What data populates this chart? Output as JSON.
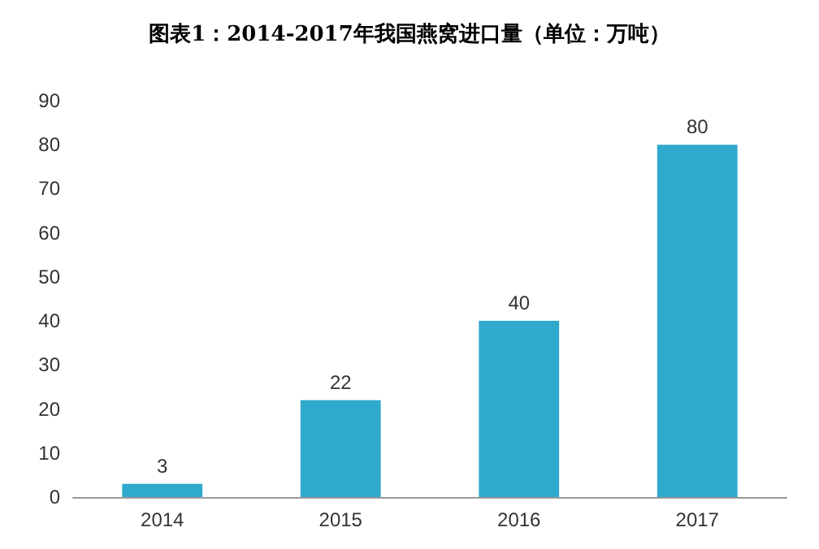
{
  "chart_data": {
    "type": "bar",
    "title": "图表1：2014-2017年我国燕窝进口量（单位：万吨）",
    "categories": [
      "2014",
      "2015",
      "2016",
      "2017"
    ],
    "values": [
      3,
      22,
      40,
      80
    ],
    "color": "#2fa9cc",
    "ylim": [
      0,
      90
    ],
    "yticks": [
      0,
      10,
      20,
      30,
      40,
      50,
      60,
      70,
      80,
      90
    ],
    "grid": false,
    "data_labels": true
  }
}
